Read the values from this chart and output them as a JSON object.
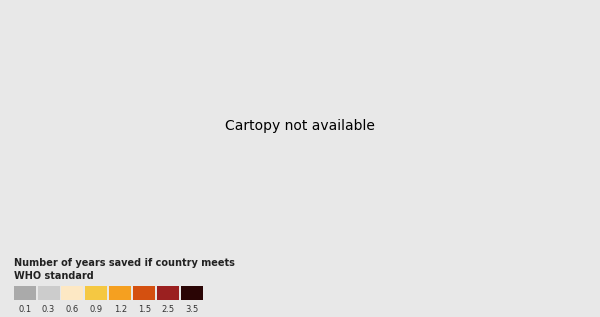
{
  "title": "Number of years saved if country meets\nWHO standard",
  "legend_values": [
    0.1,
    0.3,
    0.6,
    0.9,
    1.2,
    1.5,
    2.5,
    3.5
  ],
  "legend_colors": [
    "#aaaaaa",
    "#cccccc",
    "#fde8c4",
    "#f5b942",
    "#f08020",
    "#d45010",
    "#9b1010",
    "#5a0a0a",
    "#1a0505"
  ],
  "background_color": "#e8e8e8",
  "ocean_color": "#e8e8e8",
  "land_base_color": "#aaaaaa",
  "legend_box_color": "#ffffff",
  "colormap_colors": [
    "#aaaaaa",
    "#c8c8c8",
    "#fde8c4",
    "#f5c842",
    "#f5a020",
    "#e06010",
    "#c03010",
    "#901010",
    "#5a0808",
    "#1a0404"
  ],
  "colormap_values": [
    0.0,
    0.1,
    0.3,
    0.6,
    0.9,
    1.2,
    1.5,
    2.5,
    3.5,
    5.0
  ],
  "figsize": [
    6.0,
    3.17
  ],
  "dpi": 100
}
